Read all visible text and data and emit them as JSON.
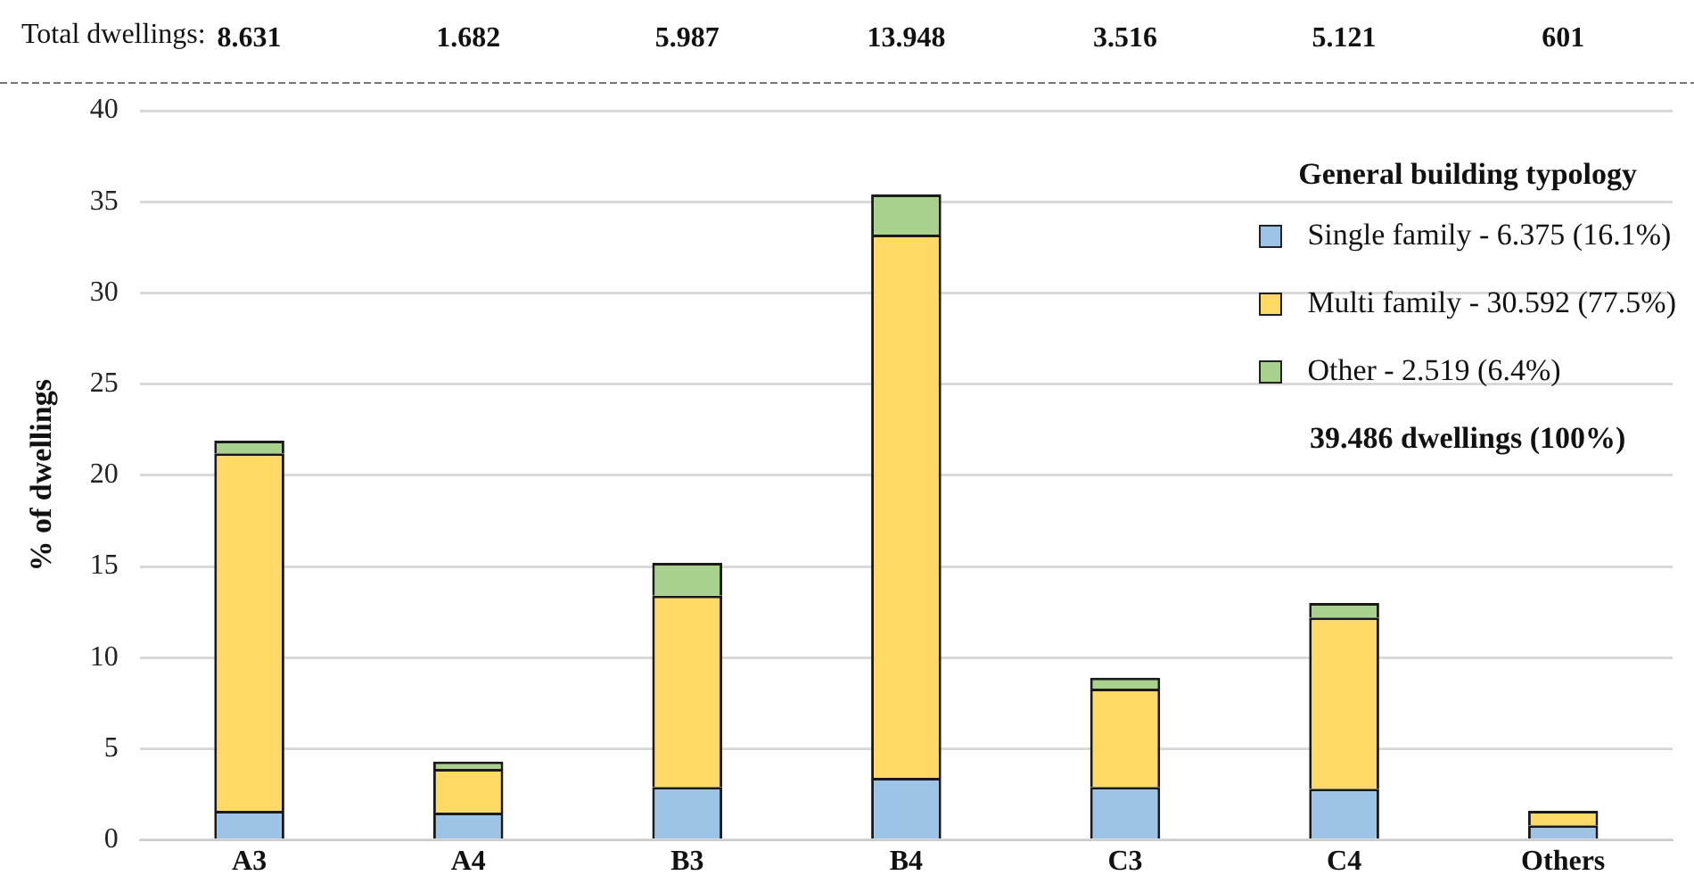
{
  "chart_data": {
    "type": "bar",
    "stacked": true,
    "ylabel": "% of dwellings",
    "legend_title": "General building typology",
    "legend": "top right",
    "grid": "y",
    "categories": [
      "A3",
      "A4",
      "B3",
      "B4",
      "C3",
      "C4",
      "Others"
    ],
    "series": [
      {
        "name": "Single family - 6.375 (16.1%)",
        "color": "#9dc3e6",
        "values": [
          1.6,
          1.5,
          2.9,
          3.4,
          2.9,
          2.8,
          0.8
        ]
      },
      {
        "name": "Multi family - 30.592 (77.5%)",
        "color": "#ffd966",
        "values": [
          19.6,
          2.4,
          10.5,
          29.8,
          5.4,
          9.4,
          0.8
        ]
      },
      {
        "name": "Other - 2.519 (6.4%)",
        "color": "#a9d18e",
        "values": [
          0.7,
          0.4,
          1.8,
          2.2,
          0.6,
          0.8,
          0
        ]
      }
    ],
    "ylim": [
      0,
      40
    ],
    "yticks": [
      0,
      5,
      10,
      15,
      20,
      25,
      30,
      35,
      40
    ],
    "annotations": [
      "Total dwellings:",
      "39.486 dwellings (100%)",
      "8.631",
      "1.682",
      "5.987",
      "13.948",
      "3.516",
      "5.121",
      "601"
    ]
  }
}
